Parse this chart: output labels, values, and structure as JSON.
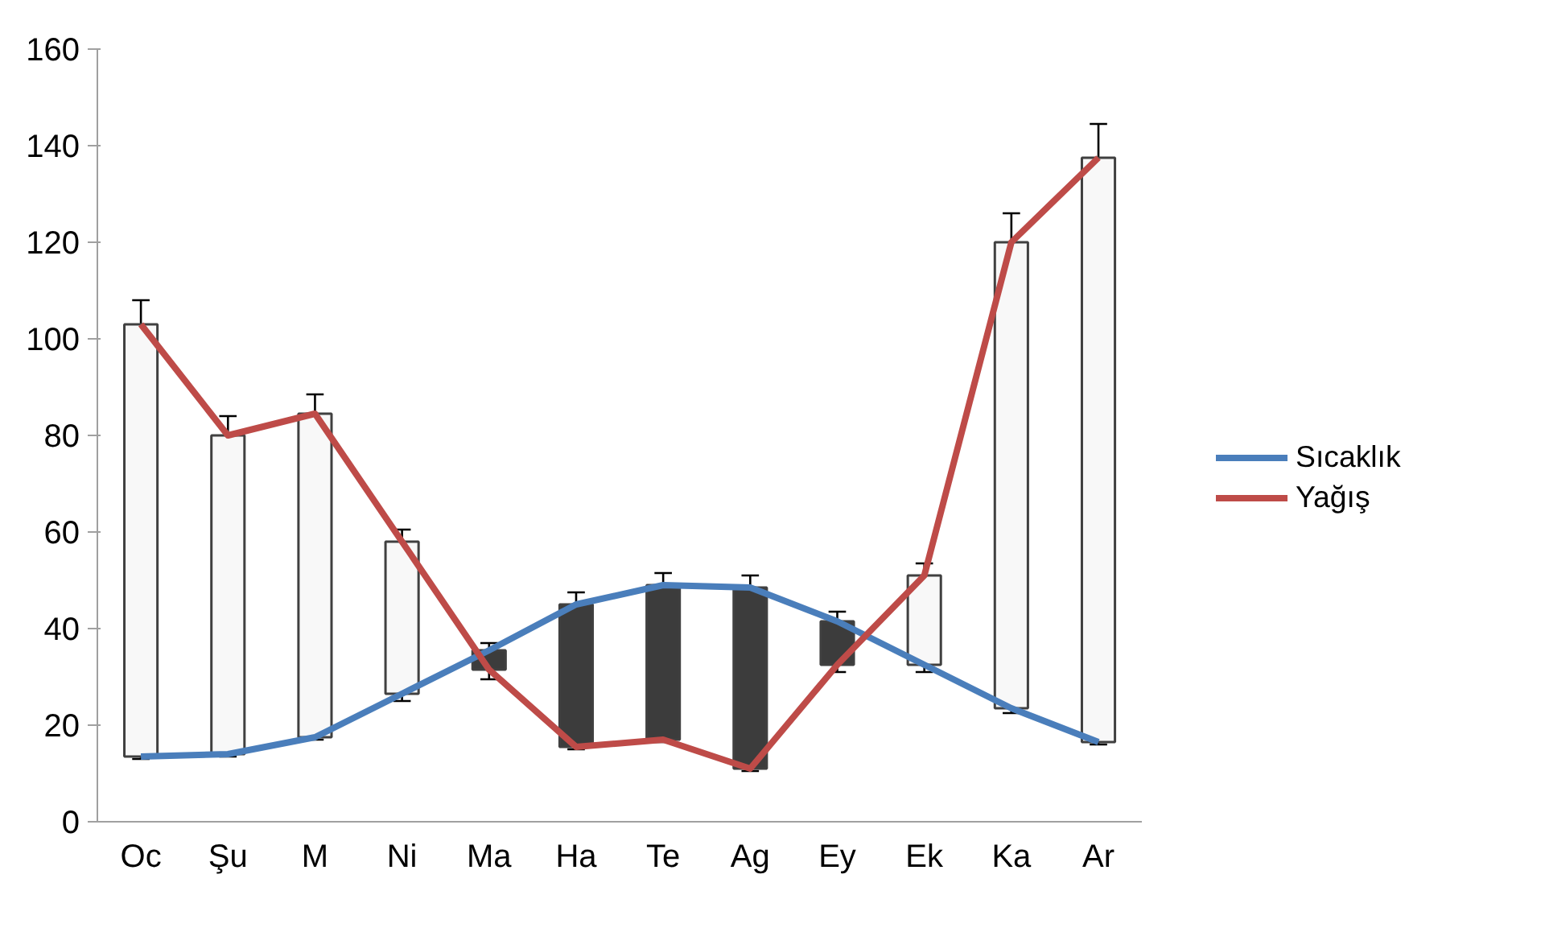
{
  "chart_data": {
    "type": "candlestick",
    "categories": [
      "Oc",
      "Şu",
      "M",
      "Ni",
      "Ma",
      "Ha",
      "Te",
      "Ag",
      "Ey",
      "Ek",
      "Ka",
      "Ar"
    ],
    "ohlc": [
      [
        13.5,
        108,
        13,
        103
      ],
      [
        14,
        84,
        13.5,
        80
      ],
      [
        17.5,
        88.5,
        17,
        84.5
      ],
      [
        26.5,
        60.5,
        25,
        58
      ],
      [
        35.5,
        37,
        29.5,
        31.5
      ],
      [
        45,
        47.5,
        15,
        15.5
      ],
      [
        49,
        51.5,
        16.5,
        17
      ],
      [
        48.5,
        51,
        10.5,
        11
      ],
      [
        41.5,
        43.5,
        31,
        32.5
      ],
      [
        32.5,
        53.5,
        31,
        51
      ],
      [
        23.5,
        126,
        22.5,
        120
      ],
      [
        16.5,
        144.5,
        16,
        137.5
      ]
    ],
    "colors": [
      "#f8f8f8",
      "#f8f8f8",
      "#f8f8f8",
      "#f8f8f8",
      "#3c3c3c",
      "#3c3c3c",
      "#3c3c3c",
      "#3c3c3c",
      "#3c3c3c",
      "#f8f8f8",
      "#f8f8f8",
      "#f8f8f8"
    ],
    "series": [
      {
        "type": "line",
        "name": "Sıcaklık",
        "color": "#4a7ebb",
        "values": [
          13.5,
          14,
          17.5,
          26.5,
          35.5,
          45,
          49,
          48.5,
          41.5,
          32.5,
          23.5,
          16.5
        ]
      },
      {
        "type": "line",
        "name": "Yağış",
        "color": "#be4b48",
        "values": [
          103,
          80,
          84.5,
          58,
          31.5,
          15.5,
          17,
          11,
          32.5,
          51,
          120,
          137.5
        ]
      }
    ],
    "ylim": [
      0,
      160
    ],
    "yticks": [
      0,
      20,
      40,
      60,
      80,
      100,
      120,
      140,
      160
    ],
    "legend": "right"
  }
}
